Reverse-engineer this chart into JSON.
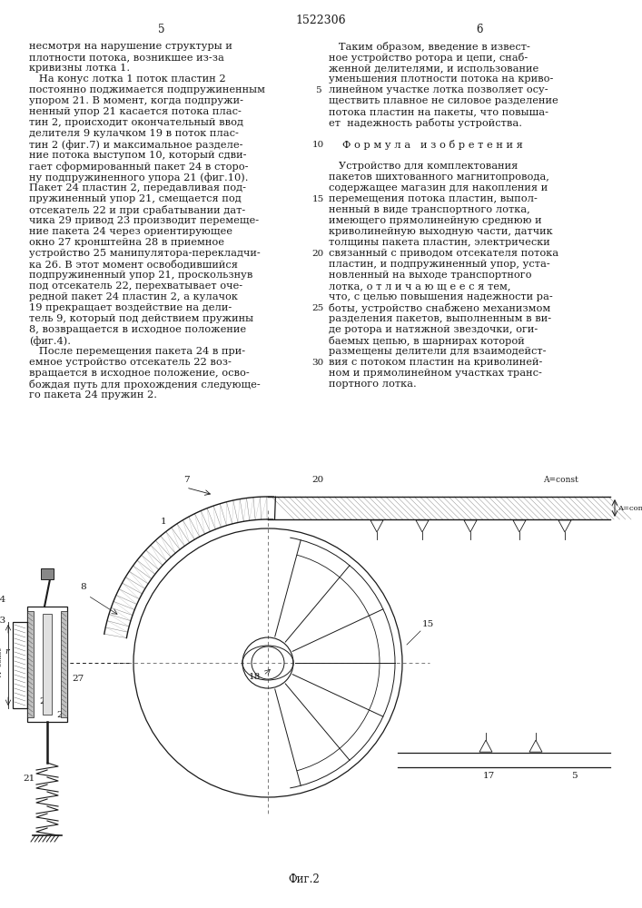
{
  "page_number_center": "1522306",
  "page_left": "5",
  "page_right": "6",
  "background_color": "#ffffff",
  "text_color": "#1a1a1a",
  "font_size_body": 8.2,
  "left_column_text": [
    "несмотря на нарушение структуры и",
    "плотности потока, возникшее из-за",
    "кривизны лотка 1.",
    "   На конус лотка 1 поток пластин 2",
    "постоянно поджимается подпружиненным",
    "упором 21. В момент, когда подпружи-",
    "ненный упор 21 касается потока плас-",
    "тин 2, происходит окончательный ввод",
    "делителя 9 кулачком 19 в поток плас-",
    "тин 2 (фиг.7) и максимальное разделе-",
    "ние потока выступом 10, который сдви-",
    "гает сформированный пакет 24 в сторо-",
    "ну подпружиненного упора 21 (фиг.10).",
    "Пакет 24 пластин 2, передавливая под-",
    "пружиненный упор 21, смещается под",
    "отсекатель 22 и при срабатывании дат-",
    "чика 29 привод 23 производит перемеще-",
    "ние пакета 24 через ориентирующее",
    "окно 27 кронштейна 28 в приемное",
    "устройство 25 манипулятора-перекладчи-",
    "ка 26. В этот момент освободившийся",
    "подпружиненный упор 21, проскользнув",
    "под отсекатель 22, перехватывает оче-",
    "редной пакет 24 пластин 2, а кулачок",
    "19 прекращает воздействие на дели-",
    "тель 9, который под действием пружины",
    "8, возвращается в исходное положение",
    "(фиг.4).",
    "   После перемещения пакета 24 в при-",
    "емное устройство отсекатель 22 воз-",
    "вращается в исходное положение, осво-",
    "бождая путь для прохождения следующе-",
    "го пакета 24 пружин 2."
  ],
  "right_column_text": [
    "   Таким образом, введение в извест-",
    "ное устройство ротора и цепи, снаб-",
    "женной делителями, и использование",
    "уменьшения плотности потока на криво-",
    "линейном участке лотка позволяет осу-",
    "ществить плавное не силовое разделение",
    "потока пластин на пакеты, что повыша-",
    "ет  надежность работы устройства.",
    "",
    "Ф о р м у л а   и з о б р е т е н и я",
    "",
    "   Устройство для комплектования",
    "пакетов шихтованного магнитопровода,",
    "содержащее магазин для накопления и",
    "перемещения потока пластин, выпол-",
    "ненный в виде транспортного лотка,",
    "имеющего прямолинейную среднюю и",
    "криволинейную выходную части, датчик",
    "толщины пакета пластин, электрически",
    "связанный с приводом отсекателя потока",
    "пластин, и подпружиненный упор, уста-",
    "новленный на выходе транспортного",
    "лотка, о т л и ч а ю щ е е с я тем,",
    "что, с целью повышения надежности ра-",
    "боты, устройство снабжено механизмом",
    "разделения пакетов, выполненным в ви-",
    "де ротора и натяжной звездочки, оги-",
    "баемых цепью, в шарнирах которой",
    "размещены делители для взаимодейст-",
    "вия с потоком пластин на криволиней-",
    "ном и прямолинейном участках транс-",
    "портного лотка."
  ],
  "line_number_rows": [
    4,
    9,
    14,
    19,
    24,
    29
  ],
  "line_number_labels": [
    "5",
    "10",
    "15",
    "20",
    "25",
    "30"
  ],
  "fig_label": "Фиг.2"
}
